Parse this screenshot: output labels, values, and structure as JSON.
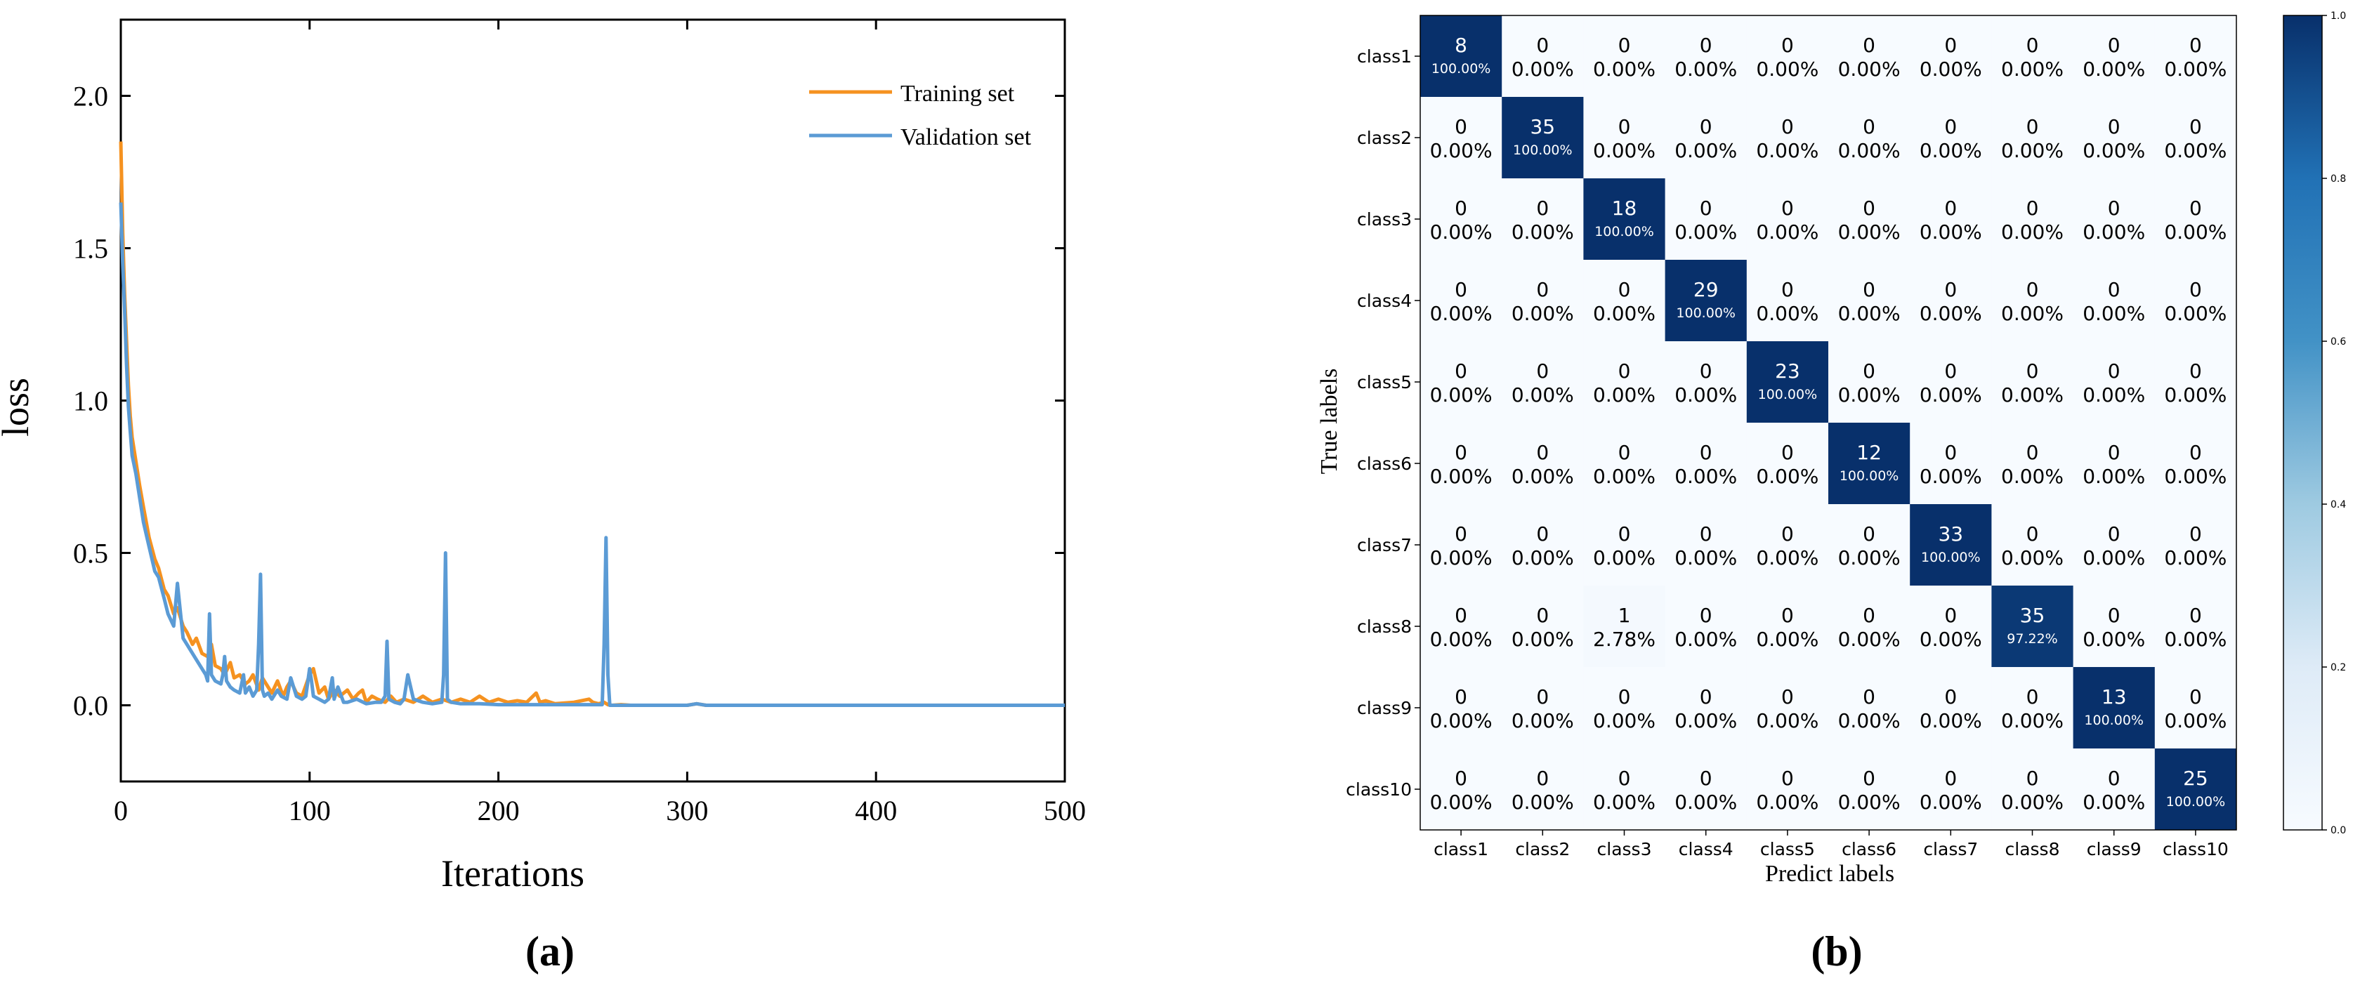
{
  "panel_labels": {
    "a": "(a)",
    "b": "(b)"
  },
  "chart_data": [
    {
      "type": "line",
      "xlabel": "Iterations",
      "ylabel": "loss",
      "xlim": [
        0,
        500
      ],
      "ylim": [
        -0.25,
        2.25
      ],
      "xticks": [
        0,
        100,
        200,
        300,
        400,
        500
      ],
      "yticks": [
        0.0,
        0.5,
        1.0,
        1.5,
        2.0
      ],
      "xtick_labels": [
        "0",
        "100",
        "200",
        "300",
        "400",
        "500"
      ],
      "ytick_labels": [
        "0.0",
        "0.5",
        "1.0",
        "1.5",
        "2.0"
      ],
      "grid": false,
      "legend_position": "top-right",
      "series": [
        {
          "name": "Training set",
          "color": "#f59220",
          "x": [
            0,
            1,
            2,
            3,
            4,
            5,
            6,
            8,
            10,
            12,
            15,
            18,
            20,
            23,
            25,
            28,
            30,
            33,
            35,
            38,
            40,
            43,
            46,
            48,
            50,
            53,
            55,
            58,
            60,
            63,
            66,
            68,
            70,
            73,
            75,
            78,
            80,
            83,
            86,
            88,
            90,
            93,
            96,
            100,
            102,
            105,
            108,
            110,
            113,
            116,
            120,
            123,
            126,
            128,
            130,
            133,
            136,
            140,
            143,
            146,
            150,
            155,
            160,
            165,
            170,
            175,
            180,
            185,
            190,
            195,
            200,
            205,
            210,
            215,
            220,
            222,
            225,
            230,
            240,
            248,
            250,
            253,
            256,
            258,
            260,
            265,
            270,
            280,
            300,
            305,
            310,
            350,
            400,
            450,
            500
          ],
          "y": [
            1.85,
            1.55,
            1.35,
            1.2,
            1.05,
            0.95,
            0.88,
            0.8,
            0.72,
            0.65,
            0.55,
            0.48,
            0.45,
            0.38,
            0.36,
            0.3,
            0.32,
            0.26,
            0.24,
            0.2,
            0.22,
            0.17,
            0.16,
            0.2,
            0.13,
            0.12,
            0.1,
            0.14,
            0.09,
            0.1,
            0.07,
            0.08,
            0.1,
            0.05,
            0.09,
            0.06,
            0.04,
            0.08,
            0.03,
            0.06,
            0.08,
            0.04,
            0.03,
            0.1,
            0.12,
            0.04,
            0.06,
            0.02,
            0.05,
            0.03,
            0.05,
            0.02,
            0.04,
            0.05,
            0.01,
            0.03,
            0.02,
            0.01,
            0.03,
            0.01,
            0.02,
            0.01,
            0.03,
            0.01,
            0.02,
            0.01,
            0.02,
            0.01,
            0.03,
            0.01,
            0.02,
            0.01,
            0.015,
            0.01,
            0.04,
            0.01,
            0.015,
            0.005,
            0.01,
            0.02,
            0.01,
            0.005,
            0.01,
            0.002,
            0.0,
            0.002,
            0.0,
            0.0,
            0.0,
            0.005,
            0.0,
            0.0,
            0.0,
            0.0,
            0.0
          ]
        },
        {
          "name": "Validation set",
          "color": "#5b9bd5",
          "x": [
            0,
            1,
            2,
            3,
            4,
            5,
            6,
            8,
            10,
            12,
            15,
            18,
            20,
            23,
            25,
            28,
            30,
            33,
            35,
            38,
            40,
            43,
            45,
            46,
            47,
            48,
            50,
            53,
            54,
            55,
            56,
            58,
            60,
            63,
            65,
            66,
            68,
            70,
            72,
            73,
            74,
            75,
            76,
            78,
            80,
            83,
            85,
            88,
            90,
            93,
            96,
            98,
            100,
            101,
            102,
            105,
            108,
            110,
            112,
            113,
            115,
            118,
            120,
            125,
            130,
            135,
            138,
            140,
            141,
            142,
            145,
            148,
            150,
            152,
            155,
            160,
            165,
            170,
            171,
            172,
            173,
            175,
            180,
            190,
            200,
            210,
            220,
            230,
            240,
            250,
            255,
            256,
            257,
            258,
            259,
            260,
            270,
            300,
            305,
            310,
            350,
            400,
            450,
            500
          ],
          "y": [
            1.65,
            1.45,
            1.3,
            1.12,
            0.98,
            0.9,
            0.82,
            0.76,
            0.68,
            0.6,
            0.52,
            0.44,
            0.42,
            0.35,
            0.3,
            0.26,
            0.4,
            0.22,
            0.2,
            0.17,
            0.15,
            0.12,
            0.1,
            0.08,
            0.3,
            0.1,
            0.08,
            0.07,
            0.1,
            0.16,
            0.08,
            0.06,
            0.05,
            0.04,
            0.1,
            0.04,
            0.06,
            0.03,
            0.05,
            0.2,
            0.43,
            0.05,
            0.03,
            0.04,
            0.02,
            0.05,
            0.03,
            0.02,
            0.09,
            0.03,
            0.02,
            0.03,
            0.12,
            0.08,
            0.03,
            0.02,
            0.01,
            0.02,
            0.09,
            0.02,
            0.06,
            0.01,
            0.01,
            0.02,
            0.005,
            0.01,
            0.01,
            0.03,
            0.21,
            0.02,
            0.01,
            0.005,
            0.02,
            0.1,
            0.02,
            0.01,
            0.005,
            0.01,
            0.1,
            0.5,
            0.02,
            0.01,
            0.005,
            0.005,
            0.002,
            0.002,
            0.002,
            0.002,
            0.002,
            0.002,
            0.002,
            0.2,
            0.55,
            0.1,
            0.0,
            0.0,
            0.0,
            0.0,
            0.005,
            0.0,
            0.0,
            0.0,
            0.0,
            0.0
          ]
        }
      ]
    },
    {
      "type": "heatmap",
      "xlabel": "Predict labels",
      "ylabel": "True labels",
      "row_labels": [
        "class1",
        "class2",
        "class3",
        "class4",
        "class5",
        "class6",
        "class7",
        "class8",
        "class9",
        "class10"
      ],
      "col_labels": [
        "class1",
        "class2",
        "class3",
        "class4",
        "class5",
        "class6",
        "class7",
        "class8",
        "class9",
        "class10"
      ],
      "counts": [
        [
          8,
          0,
          0,
          0,
          0,
          0,
          0,
          0,
          0,
          0
        ],
        [
          0,
          35,
          0,
          0,
          0,
          0,
          0,
          0,
          0,
          0
        ],
        [
          0,
          0,
          18,
          0,
          0,
          0,
          0,
          0,
          0,
          0
        ],
        [
          0,
          0,
          0,
          29,
          0,
          0,
          0,
          0,
          0,
          0
        ],
        [
          0,
          0,
          0,
          0,
          23,
          0,
          0,
          0,
          0,
          0
        ],
        [
          0,
          0,
          0,
          0,
          0,
          12,
          0,
          0,
          0,
          0
        ],
        [
          0,
          0,
          0,
          0,
          0,
          0,
          33,
          0,
          0,
          0
        ],
        [
          0,
          0,
          1,
          0,
          0,
          0,
          0,
          35,
          0,
          0
        ],
        [
          0,
          0,
          0,
          0,
          0,
          0,
          0,
          0,
          13,
          0
        ],
        [
          0,
          0,
          0,
          0,
          0,
          0,
          0,
          0,
          0,
          25
        ]
      ],
      "percents": [
        [
          "100.00%",
          "0.00%",
          "0.00%",
          "0.00%",
          "0.00%",
          "0.00%",
          "0.00%",
          "0.00%",
          "0.00%",
          "0.00%"
        ],
        [
          "0.00%",
          "100.00%",
          "0.00%",
          "0.00%",
          "0.00%",
          "0.00%",
          "0.00%",
          "0.00%",
          "0.00%",
          "0.00%"
        ],
        [
          "0.00%",
          "0.00%",
          "100.00%",
          "0.00%",
          "0.00%",
          "0.00%",
          "0.00%",
          "0.00%",
          "0.00%",
          "0.00%"
        ],
        [
          "0.00%",
          "0.00%",
          "0.00%",
          "100.00%",
          "0.00%",
          "0.00%",
          "0.00%",
          "0.00%",
          "0.00%",
          "0.00%"
        ],
        [
          "0.00%",
          "0.00%",
          "0.00%",
          "0.00%",
          "100.00%",
          "0.00%",
          "0.00%",
          "0.00%",
          "0.00%",
          "0.00%"
        ],
        [
          "0.00%",
          "0.00%",
          "0.00%",
          "0.00%",
          "0.00%",
          "100.00%",
          "0.00%",
          "0.00%",
          "0.00%",
          "0.00%"
        ],
        [
          "0.00%",
          "0.00%",
          "0.00%",
          "0.00%",
          "0.00%",
          "0.00%",
          "100.00%",
          "0.00%",
          "0.00%",
          "0.00%"
        ],
        [
          "0.00%",
          "0.00%",
          "2.78%",
          "0.00%",
          "0.00%",
          "0.00%",
          "0.00%",
          "97.22%",
          "0.00%",
          "0.00%"
        ],
        [
          "0.00%",
          "0.00%",
          "0.00%",
          "0.00%",
          "0.00%",
          "0.00%",
          "0.00%",
          "0.00%",
          "100.00%",
          "0.00%"
        ],
        [
          "0.00%",
          "0.00%",
          "0.00%",
          "0.00%",
          "0.00%",
          "0.00%",
          "0.00%",
          "0.00%",
          "0.00%",
          "100.00%"
        ]
      ],
      "colorbar": {
        "range": [
          0.0,
          1.0
        ],
        "ticks": [
          0.0,
          0.2,
          0.4,
          0.6,
          0.8,
          1.0
        ],
        "tick_labels": [
          "0.0",
          "0.2",
          "0.4",
          "0.6",
          "0.8",
          "1.0"
        ],
        "colormap_low": "#f7fbff",
        "colormap_high": "#08306b"
      }
    }
  ]
}
